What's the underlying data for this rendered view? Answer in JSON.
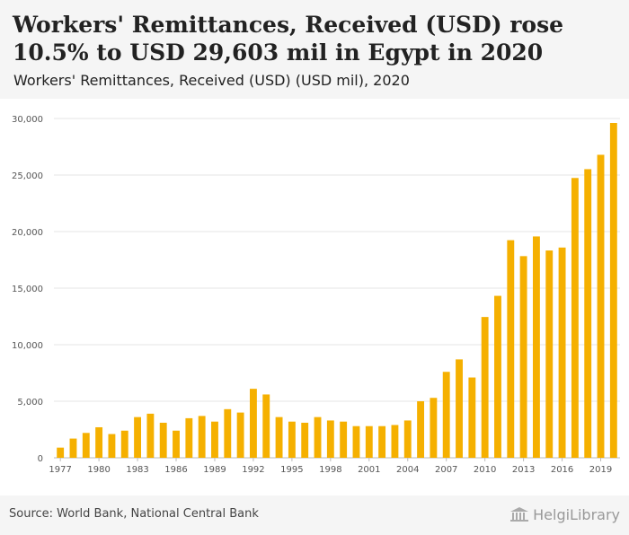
{
  "title": "Workers' Remittances, Received (USD) rose 10.5% to USD 29,603 mil in Egypt in 2020",
  "subtitle": "Workers' Remittances, Received (USD) (USD mil), 2020",
  "footer": {
    "source": "Source: World Bank, National Central Bank",
    "brand": "HelgiLibrary",
    "brand_icon": "library-building-icon"
  },
  "colors": {
    "bar": "#f5b000",
    "grid": "#e6e6e6",
    "background": "#ffffff",
    "panel": "#f5f5f5"
  },
  "chart_data": {
    "type": "bar",
    "categories": [
      "1977",
      "1978",
      "1979",
      "1980",
      "1981",
      "1982",
      "1983",
      "1984",
      "1985",
      "1986",
      "1987",
      "1988",
      "1989",
      "1990",
      "1991",
      "1992",
      "1993",
      "1994",
      "1995",
      "1996",
      "1997",
      "1998",
      "1999",
      "2000",
      "2001",
      "2002",
      "2003",
      "2004",
      "2005",
      "2006",
      "2007",
      "2008",
      "2009",
      "2010",
      "2011",
      "2012",
      "2013",
      "2014",
      "2015",
      "2016",
      "2017",
      "2018",
      "2019",
      "2020"
    ],
    "x_tick_labels": [
      "1977",
      "1980",
      "1983",
      "1986",
      "1989",
      "1992",
      "1995",
      "1998",
      "2001",
      "2004",
      "2007",
      "2010",
      "2013",
      "2016",
      "2019"
    ],
    "values": [
      900,
      1700,
      2200,
      2700,
      2100,
      2400,
      3600,
      3900,
      3100,
      2400,
      3500,
      3700,
      3200,
      4300,
      4000,
      6100,
      5600,
      3600,
      3200,
      3100,
      3600,
      3300,
      3200,
      2800,
      2800,
      2800,
      2900,
      3300,
      5000,
      5300,
      7600,
      8700,
      7100,
      12450,
      14320,
      19240,
      17830,
      19570,
      18330,
      18590,
      24740,
      25520,
      26790,
      29603
    ],
    "y_ticks": [
      0,
      5000,
      10000,
      15000,
      20000,
      25000,
      30000
    ],
    "y_tick_labels": [
      "0",
      "5,000",
      "10,000",
      "15,000",
      "20,000",
      "25,000",
      "30,000"
    ],
    "ylim": [
      0,
      30000
    ],
    "grid": true,
    "legend": "none",
    "xlabel": "",
    "ylabel": ""
  }
}
